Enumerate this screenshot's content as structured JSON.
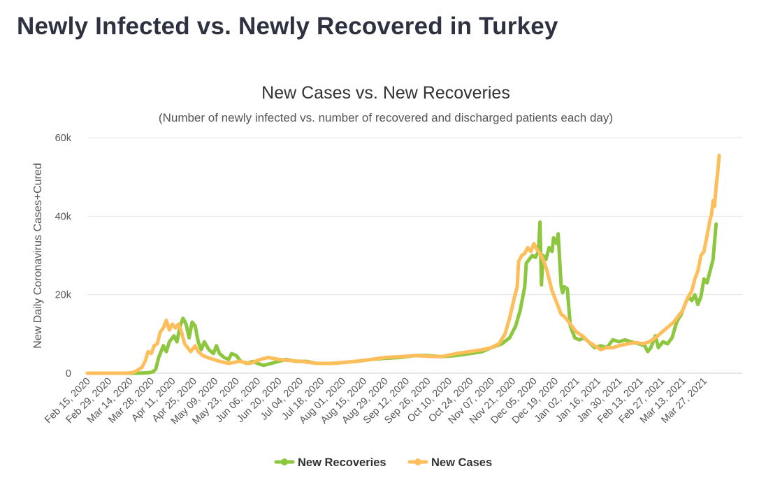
{
  "page": {
    "heading": "Newly Infected vs. Newly Recovered in Turkey"
  },
  "colors": {
    "recoveries": "#8dc63f",
    "cases": "#ffbe5c",
    "grid": "#e3e3e3",
    "text": "#555555"
  },
  "chart_data": {
    "type": "line",
    "title": "New Cases vs. New Recoveries",
    "subtitle": "(Number of newly infected vs. number of recovered and discharged patients each day)",
    "ylabel": "New Daily Coronavirus Cases+Cured",
    "xlabel": "",
    "x_start": "2020-02-15",
    "x_end": "2021-04-10",
    "ylim": [
      0,
      60000
    ],
    "y_ticks": [
      {
        "value": 0,
        "label": "0"
      },
      {
        "value": 20000,
        "label": "20k"
      },
      {
        "value": 40000,
        "label": "40k"
      },
      {
        "value": 60000,
        "label": "60k"
      }
    ],
    "x_ticks": [
      {
        "date": "2020-02-15",
        "label": "Feb 15, 2020"
      },
      {
        "date": "2020-02-29",
        "label": "Feb 29, 2020"
      },
      {
        "date": "2020-03-14",
        "label": "Mar 14, 2020"
      },
      {
        "date": "2020-03-28",
        "label": "Mar 28, 2020"
      },
      {
        "date": "2020-04-11",
        "label": "Apr 11, 2020"
      },
      {
        "date": "2020-04-25",
        "label": "Apr 25, 2020"
      },
      {
        "date": "2020-05-09",
        "label": "May 09, 2020"
      },
      {
        "date": "2020-05-23",
        "label": "May 23, 2020"
      },
      {
        "date": "2020-06-06",
        "label": "Jun 06, 2020"
      },
      {
        "date": "2020-06-20",
        "label": "Jun 20, 2020"
      },
      {
        "date": "2020-07-04",
        "label": "Jul 04, 2020"
      },
      {
        "date": "2020-07-18",
        "label": "Jul 18, 2020"
      },
      {
        "date": "2020-08-01",
        "label": "Aug 01, 2020"
      },
      {
        "date": "2020-08-15",
        "label": "Aug 15, 2020"
      },
      {
        "date": "2020-08-29",
        "label": "Aug 29, 2020"
      },
      {
        "date": "2020-09-12",
        "label": "Sep 12, 2020"
      },
      {
        "date": "2020-09-26",
        "label": "Sep 26, 2020"
      },
      {
        "date": "2020-10-10",
        "label": "Oct 10, 2020"
      },
      {
        "date": "2020-10-24",
        "label": "Oct 24, 2020"
      },
      {
        "date": "2020-11-07",
        "label": "Nov 07, 2020"
      },
      {
        "date": "2020-11-21",
        "label": "Nov 21, 2020"
      },
      {
        "date": "2020-12-05",
        "label": "Dec 05, 2020"
      },
      {
        "date": "2020-12-19",
        "label": "Dec 19, 2020"
      },
      {
        "date": "2021-01-02",
        "label": "Jan 02, 2021"
      },
      {
        "date": "2021-01-16",
        "label": "Jan 16, 2021"
      },
      {
        "date": "2021-01-30",
        "label": "Jan 30, 2021"
      },
      {
        "date": "2021-02-13",
        "label": "Feb 13, 2021"
      },
      {
        "date": "2021-02-27",
        "label": "Feb 27, 2021"
      },
      {
        "date": "2021-03-13",
        "label": "Mar 13, 2021"
      },
      {
        "date": "2021-03-27",
        "label": "Mar 27, 2021"
      }
    ],
    "grid": true,
    "legend": "bottom-center",
    "series": [
      {
        "name": "New Recoveries",
        "color": "#8dc63f",
        "points": [
          [
            "2020-02-15",
            0
          ],
          [
            "2020-03-10",
            0
          ],
          [
            "2020-03-20",
            0
          ],
          [
            "2020-03-26",
            100
          ],
          [
            "2020-03-29",
            300
          ],
          [
            "2020-03-31",
            1000
          ],
          [
            "2020-04-02",
            4000
          ],
          [
            "2020-04-05",
            7000
          ],
          [
            "2020-04-07",
            5500
          ],
          [
            "2020-04-09",
            8000
          ],
          [
            "2020-04-12",
            9500
          ],
          [
            "2020-04-14",
            8000
          ],
          [
            "2020-04-16",
            12000
          ],
          [
            "2020-04-18",
            14000
          ],
          [
            "2020-04-20",
            12500
          ],
          [
            "2020-04-22",
            9000
          ],
          [
            "2020-04-24",
            13000
          ],
          [
            "2020-04-26",
            12000
          ],
          [
            "2020-04-28",
            8000
          ],
          [
            "2020-04-30",
            6000
          ],
          [
            "2020-05-02",
            8000
          ],
          [
            "2020-05-05",
            6000
          ],
          [
            "2020-05-08",
            5000
          ],
          [
            "2020-05-10",
            7000
          ],
          [
            "2020-05-12",
            5000
          ],
          [
            "2020-05-15",
            4000
          ],
          [
            "2020-05-18",
            3500
          ],
          [
            "2020-05-20",
            5000
          ],
          [
            "2020-05-23",
            4500
          ],
          [
            "2020-05-26",
            3000
          ],
          [
            "2020-05-30",
            2500
          ],
          [
            "2020-06-03",
            3000
          ],
          [
            "2020-06-06",
            2500
          ],
          [
            "2020-06-10",
            2000
          ],
          [
            "2020-06-15",
            2500
          ],
          [
            "2020-06-20",
            3000
          ],
          [
            "2020-06-25",
            3500
          ],
          [
            "2020-07-01",
            3000
          ],
          [
            "2020-07-08",
            3000
          ],
          [
            "2020-07-15",
            2500
          ],
          [
            "2020-07-25",
            2500
          ],
          [
            "2020-08-01",
            2700
          ],
          [
            "2020-08-10",
            3000
          ],
          [
            "2020-08-20",
            3500
          ],
          [
            "2020-08-29",
            3800
          ],
          [
            "2020-09-08",
            4000
          ],
          [
            "2020-09-18",
            4500
          ],
          [
            "2020-09-26",
            4500
          ],
          [
            "2020-10-05",
            4200
          ],
          [
            "2020-10-15",
            4500
          ],
          [
            "2020-10-24",
            5000
          ],
          [
            "2020-11-01",
            5500
          ],
          [
            "2020-11-07",
            6500
          ],
          [
            "2020-11-14",
            7500
          ],
          [
            "2020-11-19",
            9000
          ],
          [
            "2020-11-23",
            12000
          ],
          [
            "2020-11-26",
            16000
          ],
          [
            "2020-11-29",
            22000
          ],
          [
            "2020-11-30",
            28000
          ],
          [
            "2020-12-02",
            29000
          ],
          [
            "2020-12-04",
            30000
          ],
          [
            "2020-12-06",
            29500
          ],
          [
            "2020-12-08",
            31000
          ],
          [
            "2020-12-09",
            38500
          ],
          [
            "2020-12-10",
            22500
          ],
          [
            "2020-12-11",
            30000
          ],
          [
            "2020-12-13",
            29000
          ],
          [
            "2020-12-15",
            32000
          ],
          [
            "2020-12-17",
            31000
          ],
          [
            "2020-12-18",
            34500
          ],
          [
            "2020-12-20",
            33000
          ],
          [
            "2020-12-21",
            35500
          ],
          [
            "2020-12-23",
            22000
          ],
          [
            "2020-12-24",
            20500
          ],
          [
            "2020-12-25",
            22000
          ],
          [
            "2020-12-27",
            21500
          ],
          [
            "2020-12-29",
            12000
          ],
          [
            "2021-01-01",
            9000
          ],
          [
            "2021-01-04",
            8500
          ],
          [
            "2021-01-07",
            9000
          ],
          [
            "2021-01-10",
            8000
          ],
          [
            "2021-01-14",
            6500
          ],
          [
            "2021-01-18",
            7000
          ],
          [
            "2021-01-22",
            6500
          ],
          [
            "2021-01-26",
            8500
          ],
          [
            "2021-01-30",
            8000
          ],
          [
            "2021-02-03",
            8500
          ],
          [
            "2021-02-07",
            8000
          ],
          [
            "2021-02-12",
            7500
          ],
          [
            "2021-02-16",
            7000
          ],
          [
            "2021-02-18",
            5500
          ],
          [
            "2021-02-20",
            6500
          ],
          [
            "2021-02-23",
            9500
          ],
          [
            "2021-02-25",
            6500
          ],
          [
            "2021-02-28",
            8000
          ],
          [
            "2021-03-03",
            7500
          ],
          [
            "2021-03-06",
            9000
          ],
          [
            "2021-03-09",
            13000
          ],
          [
            "2021-03-12",
            15000
          ],
          [
            "2021-03-15",
            18000
          ],
          [
            "2021-03-17",
            19500
          ],
          [
            "2021-03-19",
            18500
          ],
          [
            "2021-03-21",
            20000
          ],
          [
            "2021-03-23",
            17500
          ],
          [
            "2021-03-25",
            19500
          ],
          [
            "2021-03-27",
            24000
          ],
          [
            "2021-03-29",
            23000
          ],
          [
            "2021-03-31",
            26000
          ],
          [
            "2021-04-02",
            29000
          ],
          [
            "2021-04-04",
            38000
          ]
        ]
      },
      {
        "name": "New Cases",
        "color": "#ffbe5c",
        "points": [
          [
            "2020-02-15",
            0
          ],
          [
            "2020-03-08",
            0
          ],
          [
            "2020-03-13",
            50
          ],
          [
            "2020-03-16",
            200
          ],
          [
            "2020-03-18",
            500
          ],
          [
            "2020-03-20",
            1000
          ],
          [
            "2020-03-22",
            1500
          ],
          [
            "2020-03-24",
            3000
          ],
          [
            "2020-03-26",
            5500
          ],
          [
            "2020-03-28",
            5000
          ],
          [
            "2020-03-30",
            7000
          ],
          [
            "2020-04-01",
            7500
          ],
          [
            "2020-04-03",
            10500
          ],
          [
            "2020-04-05",
            11500
          ],
          [
            "2020-04-07",
            13500
          ],
          [
            "2020-04-09",
            11000
          ],
          [
            "2020-04-11",
            12500
          ],
          [
            "2020-04-13",
            11500
          ],
          [
            "2020-04-15",
            12500
          ],
          [
            "2020-04-17",
            10500
          ],
          [
            "2020-04-19",
            7500
          ],
          [
            "2020-04-21",
            6500
          ],
          [
            "2020-04-23",
            5500
          ],
          [
            "2020-04-26",
            7000
          ],
          [
            "2020-04-28",
            5500
          ],
          [
            "2020-05-01",
            4500
          ],
          [
            "2020-05-04",
            4000
          ],
          [
            "2020-05-08",
            3500
          ],
          [
            "2020-05-12",
            3000
          ],
          [
            "2020-05-18",
            2500
          ],
          [
            "2020-05-25",
            3000
          ],
          [
            "2020-06-01",
            2500
          ],
          [
            "2020-06-08",
            3500
          ],
          [
            "2020-06-13",
            4000
          ],
          [
            "2020-06-20",
            3500
          ],
          [
            "2020-06-28",
            3200
          ],
          [
            "2020-07-05",
            3000
          ],
          [
            "2020-07-15",
            2500
          ],
          [
            "2020-07-25",
            2500
          ],
          [
            "2020-08-01",
            2700
          ],
          [
            "2020-08-10",
            3000
          ],
          [
            "2020-08-20",
            3500
          ],
          [
            "2020-08-29",
            4000
          ],
          [
            "2020-09-08",
            4200
          ],
          [
            "2020-09-18",
            4500
          ],
          [
            "2020-09-26",
            4300
          ],
          [
            "2020-10-05",
            4200
          ],
          [
            "2020-10-15",
            5000
          ],
          [
            "2020-10-24",
            5500
          ],
          [
            "2020-11-01",
            6000
          ],
          [
            "2020-11-07",
            6500
          ],
          [
            "2020-11-12",
            7500
          ],
          [
            "2020-11-16",
            10000
          ],
          [
            "2020-11-19",
            14000
          ],
          [
            "2020-11-22",
            19000
          ],
          [
            "2020-11-24",
            22000
          ],
          [
            "2020-11-25",
            28500
          ],
          [
            "2020-11-27",
            30000
          ],
          [
            "2020-11-29",
            30500
          ],
          [
            "2020-12-01",
            32000
          ],
          [
            "2020-12-03",
            31000
          ],
          [
            "2020-12-05",
            33000
          ],
          [
            "2020-12-07",
            31500
          ],
          [
            "2020-12-09",
            30500
          ],
          [
            "2020-12-11",
            29000
          ],
          [
            "2020-12-13",
            27000
          ],
          [
            "2020-12-15",
            24000
          ],
          [
            "2020-12-17",
            21000
          ],
          [
            "2020-12-19",
            19000
          ],
          [
            "2020-12-21",
            17000
          ],
          [
            "2020-12-23",
            15000
          ],
          [
            "2020-12-25",
            14500
          ],
          [
            "2020-12-27",
            13500
          ],
          [
            "2020-12-30",
            12000
          ],
          [
            "2021-01-02",
            10500
          ],
          [
            "2021-01-06",
            9500
          ],
          [
            "2021-01-10",
            8000
          ],
          [
            "2021-01-14",
            7000
          ],
          [
            "2021-01-18",
            6000
          ],
          [
            "2021-01-22",
            6500
          ],
          [
            "2021-01-26",
            6500
          ],
          [
            "2021-01-30",
            7000
          ],
          [
            "2021-02-05",
            7500
          ],
          [
            "2021-02-10",
            7800
          ],
          [
            "2021-02-15",
            7500
          ],
          [
            "2021-02-19",
            8000
          ],
          [
            "2021-02-23",
            9000
          ],
          [
            "2021-02-26",
            10000
          ],
          [
            "2021-03-01",
            11000
          ],
          [
            "2021-03-04",
            12000
          ],
          [
            "2021-03-07",
            13000
          ],
          [
            "2021-03-10",
            14500
          ],
          [
            "2021-03-13",
            16000
          ],
          [
            "2021-03-16",
            19000
          ],
          [
            "2021-03-19",
            21000
          ],
          [
            "2021-03-21",
            24000
          ],
          [
            "2021-03-23",
            26000
          ],
          [
            "2021-03-25",
            30000
          ],
          [
            "2021-03-27",
            31000
          ],
          [
            "2021-03-29",
            35000
          ],
          [
            "2021-03-31",
            39000
          ],
          [
            "2021-04-01",
            40500
          ],
          [
            "2021-04-02",
            44000
          ],
          [
            "2021-04-03",
            42500
          ],
          [
            "2021-04-04",
            47500
          ],
          [
            "2021-04-05",
            51000
          ],
          [
            "2021-04-06",
            55500
          ]
        ]
      }
    ]
  }
}
